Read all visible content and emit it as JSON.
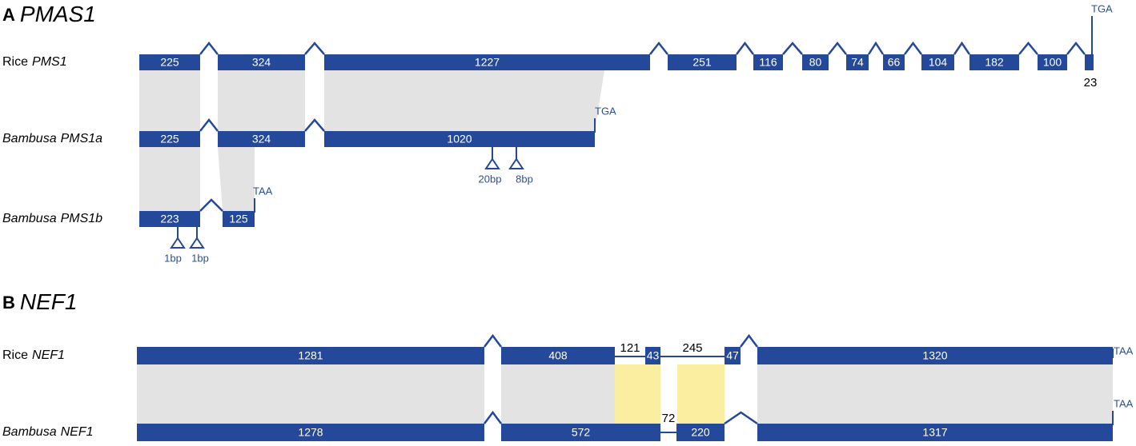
{
  "panels": [
    {
      "letter": "A",
      "title": "PMAS1",
      "tracks": [
        {
          "species": "Rice",
          "gene": "PMS1",
          "exons": [
            225,
            324,
            1227,
            251,
            116,
            80,
            74,
            66,
            104,
            182,
            100,
            23
          ],
          "stop": "TGA"
        },
        {
          "species": "Bambusa",
          "gene": "PMS1a",
          "exons": [
            225,
            324,
            1020
          ],
          "stop": "TGA",
          "deletions": [
            "20bp",
            "8bp"
          ]
        },
        {
          "species": "Bambusa",
          "gene": "PMS1b",
          "exons": [
            223,
            125
          ],
          "stop": "TAA",
          "deletions": [
            "1bp",
            "1bp"
          ]
        }
      ]
    },
    {
      "letter": "B",
      "title": "NEF1",
      "tracks": [
        {
          "species": "Rice",
          "gene": "NEF1",
          "exons": [
            1281,
            408,
            43,
            47,
            1320
          ],
          "introns": [
            121,
            245
          ],
          "stop": "TAA"
        },
        {
          "species": "Bambusa",
          "gene": "NEF1",
          "exons": [
            1278,
            572,
            220,
            1317
          ],
          "introns": [
            72
          ],
          "stop": "TAA"
        }
      ]
    }
  ]
}
